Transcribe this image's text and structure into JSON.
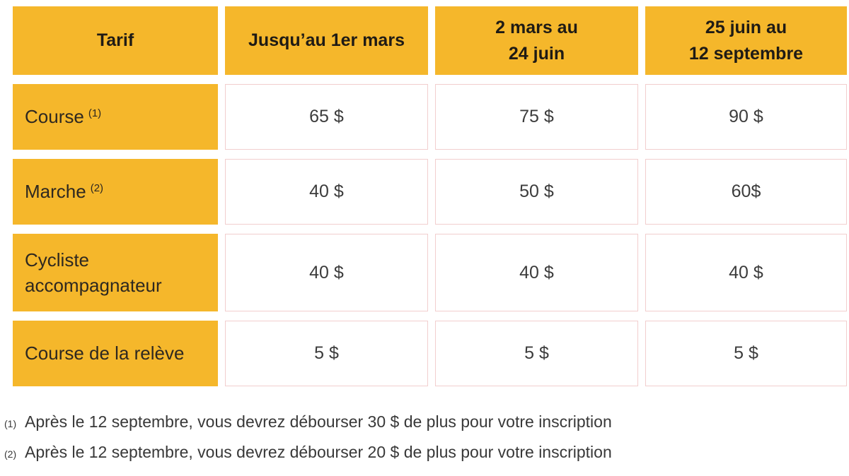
{
  "table": {
    "corner_label": "Tarif",
    "columns": [
      {
        "line1": "Jusqu’au 1er mars",
        "line2": ""
      },
      {
        "line1": "2 mars au",
        "line2": "24 juin"
      },
      {
        "line1": "25 juin au",
        "line2": "12 septembre"
      }
    ],
    "rows": [
      {
        "label": "Course",
        "ref": "(1)",
        "values": [
          "65 $",
          "75 $",
          "90 $"
        ]
      },
      {
        "label": "Marche",
        "ref": "(2)",
        "values": [
          "40 $",
          "50 $",
          "60$"
        ]
      },
      {
        "label": "Cycliste accompagnateur",
        "ref": "",
        "values": [
          "40 $",
          "40 $",
          "40 $"
        ]
      },
      {
        "label": "Course de la relève",
        "ref": "",
        "values": [
          "5 $",
          "5 $",
          "5 $"
        ]
      }
    ]
  },
  "footnotes": [
    {
      "marker": "(1)",
      "text": "Après le 12 septembre, vous devrez débourser 30 $ de plus pour votre inscription"
    },
    {
      "marker": "(2)",
      "text": "Après le 12 septembre, vous devrez débourser 20 $ de plus pour votre inscription"
    }
  ],
  "colors": {
    "header_bg": "#F5B72B",
    "cell_border": "#F2CECE",
    "header_text": "#1F1B15",
    "value_text": "#3C3C3C"
  }
}
